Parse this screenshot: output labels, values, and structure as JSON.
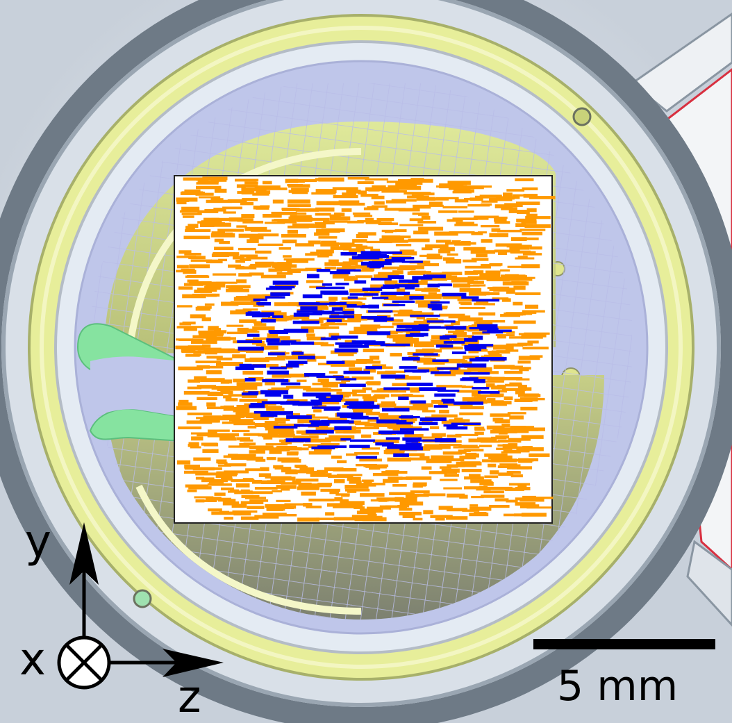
{
  "axes": {
    "y_label": "y",
    "x_label": "x",
    "z_label": "z"
  },
  "scale_bar": {
    "label": "5 mm"
  },
  "colors": {
    "background": "#d6dde6",
    "outer_ring": "#5f6b78",
    "yellow_ring": "#e7ee9a",
    "lavender_ring": "#bfc6ea",
    "green_slot": "#86e3a0",
    "mesh": "#c7c9ee",
    "orange_marks": "#ff9900",
    "blue_marks": "#0000ee",
    "red_outline": "#d83040"
  },
  "overlay": {
    "orange_mark_count": 1500,
    "blue_mark_count": 260
  }
}
